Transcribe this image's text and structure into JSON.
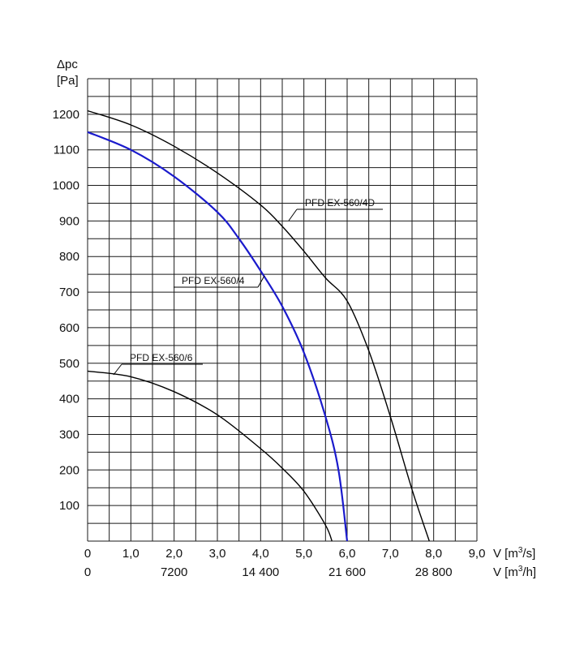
{
  "chart_data": {
    "type": "line",
    "y_axis": {
      "label_line1": "Δpc",
      "label_line2": "[Pa]",
      "ylim": [
        0,
        1300
      ],
      "ticks": [
        100,
        200,
        300,
        400,
        500,
        600,
        700,
        800,
        900,
        1000,
        1100,
        1200
      ],
      "grid_step": 50
    },
    "x_axis": {
      "xlim": [
        0,
        9.0
      ],
      "grid_step": 0.5,
      "tick_values": [
        0,
        1.0,
        2.0,
        3.0,
        4.0,
        5.0,
        6.0,
        7.0,
        8.0,
        9.0
      ],
      "tick_labels": [
        "0",
        "1,0",
        "2,0",
        "3,0",
        "4,0",
        "5,0",
        "6,0",
        "7,0",
        "8,0",
        "9,0"
      ],
      "unit_label": "V [m3/s]",
      "unit_prefix": "V [m",
      "unit_sup": "3",
      "unit_suffix": "/s]",
      "secondary_tick_values": [
        0,
        2.0,
        4.0,
        6.0,
        8.0
      ],
      "secondary_tick_labels": [
        "0",
        "7200",
        "14 400",
        "21 600",
        "28 800"
      ],
      "secondary_unit_prefix": "V [m",
      "secondary_unit_sup": "3",
      "secondary_unit_suffix": "/h]"
    },
    "grid": true,
    "series": [
      {
        "name": "PFD EX-560/4D",
        "color": "#000000",
        "x": [
          0,
          1.0,
          2.0,
          3.0,
          4.0,
          4.5,
          5.0,
          5.5,
          6.0,
          6.5,
          7.0,
          7.5,
          7.9
        ],
        "y": [
          1210,
          1170,
          1110,
          1035,
          945,
          885,
          815,
          740,
          675,
          535,
          350,
          145,
          0
        ]
      },
      {
        "name": "PFD EX-560/4",
        "color": "#1a1acc",
        "x": [
          0,
          1.0,
          2.0,
          3.0,
          3.5,
          4.0,
          4.5,
          5.0,
          5.5,
          5.8,
          6.0
        ],
        "y": [
          1150,
          1100,
          1025,
          925,
          850,
          760,
          660,
          530,
          350,
          200,
          0
        ]
      },
      {
        "name": "PFD EX-560/6",
        "color": "#000000",
        "x": [
          0,
          1.0,
          2.0,
          3.0,
          4.0,
          4.5,
          5.0,
          5.5,
          5.65
        ],
        "y": [
          478,
          462,
          420,
          355,
          260,
          205,
          140,
          45,
          0
        ]
      }
    ]
  }
}
